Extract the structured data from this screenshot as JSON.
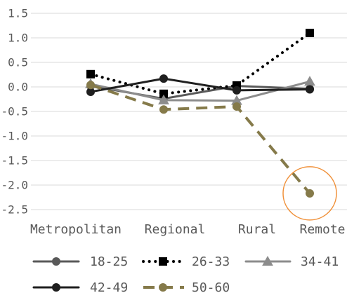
{
  "chart_data": {
    "type": "line",
    "categories": [
      "Metropolitan",
      "Regional",
      "Rural",
      "Remote"
    ],
    "series": [
      {
        "name": "18-25",
        "values": [
          0.02,
          -0.24,
          0.02,
          -0.04
        ],
        "color": "#595959",
        "marker": "circle",
        "line_style": "solid"
      },
      {
        "name": "26-33",
        "values": [
          0.26,
          -0.14,
          0.03,
          1.1
        ],
        "color": "#000000",
        "marker": "square",
        "line_style": "dotted"
      },
      {
        "name": "34-41",
        "values": [
          0.06,
          -0.27,
          -0.28,
          0.11
        ],
        "color": "#8c8c8c",
        "marker": "triangle",
        "line_style": "solid"
      },
      {
        "name": "42-49",
        "values": [
          -0.1,
          0.17,
          -0.07,
          -0.05
        ],
        "color": "#1f1f1f",
        "marker": "circle",
        "line_style": "solid"
      },
      {
        "name": "50-60",
        "values": [
          0.04,
          -0.46,
          -0.4,
          -2.17
        ],
        "color": "#857a4a",
        "marker": "circle",
        "line_style": "dashed"
      }
    ],
    "ylim": [
      -2.5,
      1.5
    ],
    "y_ticks": [
      "1.5",
      "1.0",
      "0.5",
      "0.0",
      "-0.5",
      "-1.0",
      "-1.5",
      "-2.0",
      "-2.5"
    ],
    "grid": true,
    "grid_color": "#d9d9d9",
    "text_color": "#595959",
    "legend_position": "bottom",
    "highlight": {
      "series": "50-60",
      "category": "Remote",
      "color": "#f0913a"
    }
  }
}
